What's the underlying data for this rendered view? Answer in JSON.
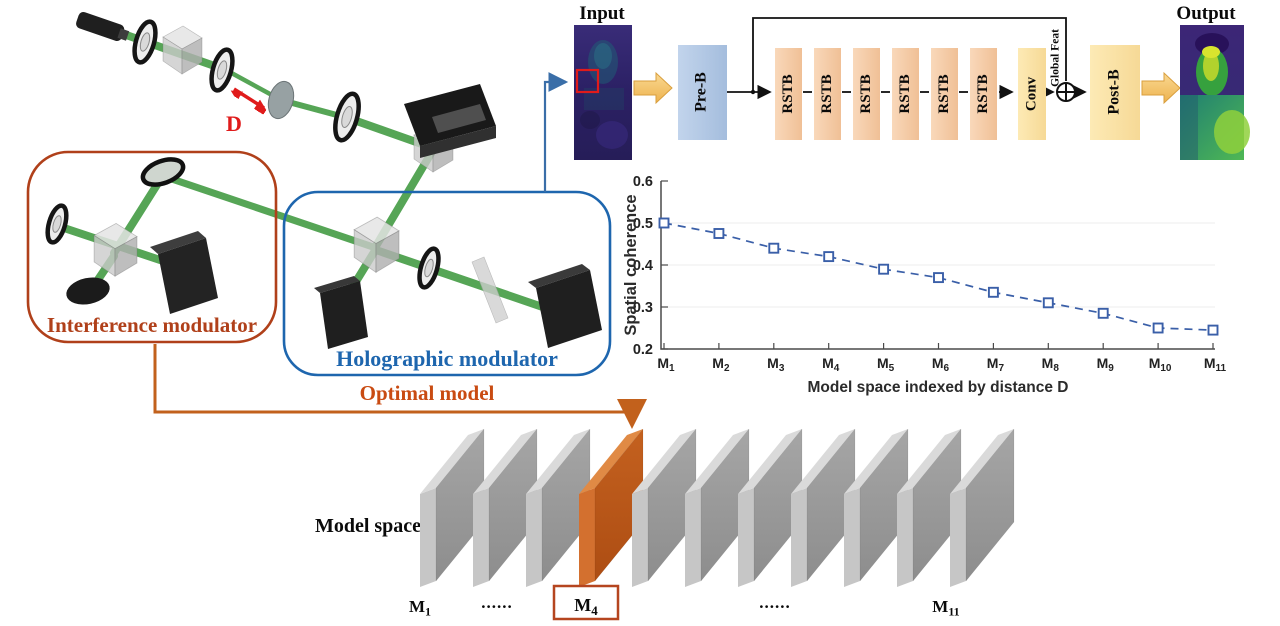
{
  "colors": {
    "beam_green": "#56a556",
    "interference_accent": "#b0401a",
    "holographic_accent": "#1e66ae",
    "optimal_accent": "#c94b12",
    "chart_line": "#3a5fa8",
    "highlight_slab": "#bc571b",
    "pre_block_fill": "#b3c9e6",
    "rstb_fill": "#f6cdab",
    "conv_fill": "#fae2a4",
    "arrow_yellow": "#f2c268",
    "distance_red": "#e01b1b"
  },
  "optics": {
    "distance_label": "D",
    "interference_label": "Interference modulator",
    "holographic_label": "Holographic modulator",
    "optimal_label": "Optimal model"
  },
  "network": {
    "input_label": "Input",
    "output_label": "Output",
    "pre_block_label": "Pre-B",
    "rstb_labels": [
      "RSTB",
      "RSTB",
      "RSTB",
      "RSTB",
      "RSTB",
      "RSTB"
    ],
    "conv_label": "Conv",
    "global_feat_label": "Global Feat",
    "post_block_label": "Post-B"
  },
  "model_space": {
    "title": "Model space",
    "slab_count": 11,
    "highlight_index": 4,
    "first_label": {
      "base": "M",
      "sub": "1"
    },
    "dots_left": "......",
    "highlight_label": {
      "base": "M",
      "sub": "4"
    },
    "dots_right": "......",
    "last_label": {
      "base": "M",
      "sub": "11"
    }
  },
  "chart_data": {
    "type": "line",
    "categories": [
      "M1",
      "M2",
      "M3",
      "M4",
      "M5",
      "M6",
      "M7",
      "M8",
      "M9",
      "M10",
      "M11"
    ],
    "category_base": "M",
    "category_subs": [
      "1",
      "2",
      "3",
      "4",
      "5",
      "6",
      "7",
      "8",
      "9",
      "10",
      "11"
    ],
    "values": [
      0.5,
      0.475,
      0.44,
      0.42,
      0.39,
      0.37,
      0.335,
      0.31,
      0.285,
      0.25,
      0.245
    ],
    "ylabel": "Spatial coherence",
    "xlabel": "Model space indexed by distance D",
    "yticks": [
      0.2,
      0.3,
      0.4,
      0.5,
      0.6
    ],
    "ylim": [
      0.2,
      0.6
    ],
    "grid": "faint horizontal gridlines at 0.3, 0.4, 0.5",
    "legend": "none",
    "line_style": "dashed",
    "marker": "open-square"
  }
}
